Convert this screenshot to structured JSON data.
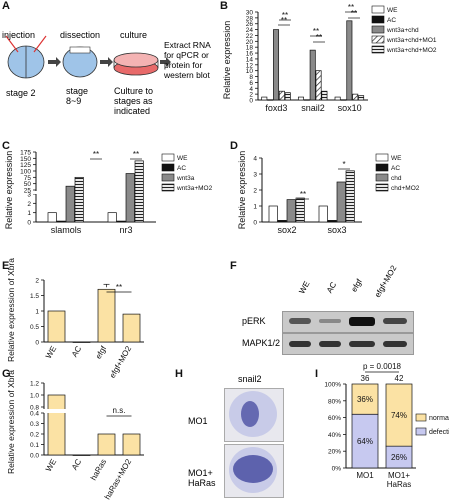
{
  "panel_labels": [
    "A",
    "B",
    "C",
    "D",
    "E",
    "F",
    "G",
    "H",
    "I"
  ],
  "panel_A": {
    "steps": [
      "injection",
      "dissection",
      "culture"
    ],
    "stage_labels": [
      "stage 2",
      "stage 8~9",
      "Culture to stages as indicated"
    ],
    "extract_text": [
      "Extract RNA",
      "for qPCR or",
      "protein for",
      "western blot"
    ],
    "colors": {
      "embryo": "#9fc4e8",
      "dish": "#e86a6a"
    }
  },
  "legends": {
    "B": [
      "WE",
      "AC",
      "wnt3a+chd",
      "wnt3a+chd+MO1",
      "wnt3a+chd+MO2"
    ],
    "C": [
      "WE",
      "AC",
      "wnt3a",
      "wnt3a+MO2"
    ],
    "D": [
      "WE",
      "AC",
      "chd",
      "chd+MO2"
    ]
  },
  "panel_F": {
    "lanes": [
      "WE",
      "AC",
      "efgf",
      "efgf+MO2"
    ],
    "rows": [
      "pERK",
      "MAPK1/2"
    ]
  },
  "panel_H": {
    "title": "snail2",
    "rows": [
      "MO1",
      "MO1+\nHaRas"
    ],
    "row1": "MO1",
    "row2a": "MO1+",
    "row2b": "HaRas"
  },
  "chart_data": [
    {
      "id": "B",
      "type": "bar",
      "ylabel": "Relative expression",
      "categories": [
        "foxd3",
        "snail2",
        "sox10"
      ],
      "ticks": [
        "0",
        "2",
        "4",
        "6",
        "8",
        "10",
        "12",
        "14",
        "16",
        "18",
        "20",
        "22",
        "24",
        "26",
        "28",
        "30"
      ],
      "series": [
        {
          "name": "WE",
          "values": [
            1.0,
            1.0,
            1.0
          ]
        },
        {
          "name": "AC",
          "values": [
            0.1,
            0.1,
            0.1
          ]
        },
        {
          "name": "wnt3a+chd",
          "values": [
            24.0,
            17.0,
            27.0
          ]
        },
        {
          "name": "wnt3a+chd+MO1",
          "values": [
            3.0,
            10.0,
            2.0
          ]
        },
        {
          "name": "wnt3a+chd+MO2",
          "values": [
            2.5,
            3.0,
            1.5
          ]
        }
      ],
      "sig": [
        "**",
        "**",
        "**",
        "**",
        "**",
        "**"
      ]
    },
    {
      "id": "C",
      "type": "bar",
      "ylabel": "Relative expression",
      "categories": [
        "slamols",
        "nr3"
      ],
      "ticks": [
        "0",
        "1",
        "2",
        "3",
        "25",
        "50",
        "75",
        "100",
        "125",
        "150",
        "175"
      ],
      "series": [
        {
          "name": "WE",
          "values": [
            1.0,
            1.0
          ]
        },
        {
          "name": "AC",
          "values": [
            0.1,
            0.1
          ]
        },
        {
          "name": "wnt3a",
          "values": [
            40,
            90
          ]
        },
        {
          "name": "wnt3a+MO2",
          "values": [
            75,
            140
          ]
        }
      ],
      "sig": [
        "**",
        "**"
      ]
    },
    {
      "id": "D",
      "type": "bar",
      "ylabel": "Relative expression",
      "categories": [
        "sox2",
        "sox3"
      ],
      "ticks": [
        "0",
        "1",
        "2",
        "3",
        "4"
      ],
      "ylim": [
        0,
        4
      ],
      "series": [
        {
          "name": "WE",
          "values": [
            1.0,
            1.0
          ]
        },
        {
          "name": "AC",
          "values": [
            0.1,
            0.1
          ]
        },
        {
          "name": "chd",
          "values": [
            1.4,
            2.5
          ]
        },
        {
          "name": "chd+MO2",
          "values": [
            1.5,
            3.2
          ]
        }
      ],
      "sig": [
        "**",
        "*"
      ]
    },
    {
      "id": "E",
      "type": "bar",
      "ylabel": "Relative expression of Xbra",
      "categories": [
        "WE",
        "AC",
        "efgf",
        "efgf+MO2"
      ],
      "values": [
        1.0,
        0.0,
        1.7,
        0.9
      ],
      "ticks": [
        "0",
        "0.5",
        "1",
        "1.5",
        "2"
      ],
      "ylim": [
        0,
        2
      ],
      "sig": [
        "**"
      ]
    },
    {
      "id": "G",
      "type": "bar",
      "ylabel": "Relative expression of Xbra",
      "categories": [
        "WE",
        "AC",
        "haRas",
        "haRas+MO2"
      ],
      "values": [
        1.0,
        0.0,
        0.2,
        0.2
      ],
      "ticks": [
        "0.0",
        "0.1",
        "0.2",
        "0.3",
        "0.4",
        "0.8",
        "1.0",
        "1.2"
      ],
      "sig": [
        "n.s."
      ]
    },
    {
      "id": "I",
      "type": "bar",
      "ylabel": "",
      "categories": [
        "MO1",
        "MO1+\nHaRas"
      ],
      "x_labels": [
        [
          "MO1"
        ],
        [
          "MO1+",
          "HaRas"
        ]
      ],
      "n": [
        "36",
        "42"
      ],
      "pvalue": "p = 0.0018",
      "series": [
        {
          "name": "defective",
          "values": [
            64,
            26
          ]
        },
        {
          "name": "normal",
          "values": [
            36,
            74
          ]
        }
      ],
      "seg_labels": [
        [
          "64%",
          "36%"
        ],
        [
          "26%",
          "74%"
        ]
      ],
      "ticks": [
        "0%",
        "20%",
        "40%",
        "60%",
        "80%",
        "100%"
      ],
      "ylim": [
        0,
        100
      ],
      "legend": [
        "normal",
        "defective"
      ]
    }
  ]
}
